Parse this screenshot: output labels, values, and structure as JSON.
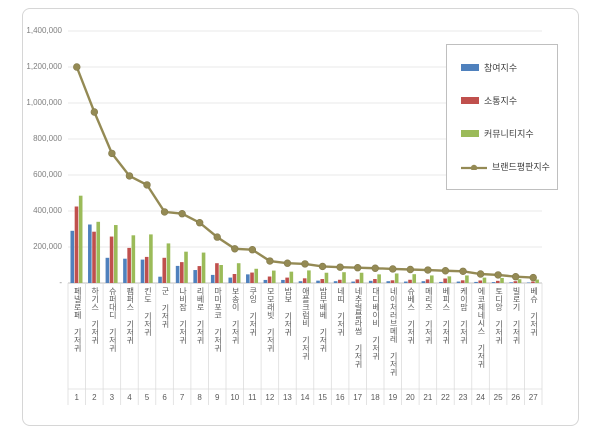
{
  "chart_data": {
    "type": "bar",
    "note_render": "grouped bars with overlaid line (combo chart)",
    "title": "",
    "xlabel": "",
    "ylabel": "",
    "ylim": [
      0,
      1400000
    ],
    "y_tick_step": 200000,
    "grid": true,
    "legend_position": "upper-right-box",
    "y_ticks": [
      "1,400,000",
      "1,200,000",
      "1,000,000",
      "800,000",
      "600,000",
      "400,000",
      "200,000",
      "-"
    ],
    "categories": [
      "페넬로페 기저귀",
      "하기스 기저귀",
      "슈퍼대디 기저귀",
      "팸퍼스 기저귀",
      "킨도 기저귀",
      "군 기저귀",
      "나비잠 기저귀",
      "리베로 기저귀",
      "마미포코 기저귀",
      "보송이 기저귀",
      "쿠잉 기저귀",
      "모모래빗 기저귀",
      "밤보 기저귀",
      "애플크럼비 기저귀",
      "밤부베베 기저귀",
      "네띠 기저귀",
      "네추럴블라썸 기저귀",
      "대디베이비 기저귀",
      "네이처러브메레 기저귀",
      "슈베스 기저귀",
      "메리즈 기저귀",
      "베피스 기저귀",
      "케이맘 기저귀",
      "에코제네시스 기저귀",
      "토디앙 기저귀",
      "빌로기 기저귀",
      "베슈 기저귀"
    ],
    "ranks": [
      "1",
      "2",
      "3",
      "4",
      "5",
      "6",
      "7",
      "8",
      "9",
      "10",
      "11",
      "12",
      "13",
      "14",
      "15",
      "16",
      "17",
      "18",
      "19",
      "20",
      "21",
      "22",
      "23",
      "24",
      "25",
      "26",
      "27"
    ],
    "series": [
      {
        "name": "참여지수",
        "kind": "bar",
        "color": "#4F81BD",
        "values": [
          290000,
          325000,
          140000,
          135000,
          130000,
          35000,
          95000,
          72000,
          45000,
          30000,
          48000,
          17000,
          17000,
          10000,
          13000,
          10000,
          8000,
          12000,
          10000,
          8000,
          10000,
          6000,
          8000,
          6000,
          5000,
          4000,
          3000
        ]
      },
      {
        "name": "소통지수",
        "kind": "bar",
        "color": "#C0504D",
        "values": [
          425000,
          285000,
          258000,
          195000,
          145000,
          140000,
          116000,
          94000,
          110000,
          50000,
          58000,
          36000,
          30000,
          26000,
          22000,
          18000,
          20000,
          22000,
          15000,
          18000,
          20000,
          25000,
          15000,
          14000,
          12000,
          10000,
          8000
        ]
      },
      {
        "name": "커뮤니티지수",
        "kind": "bar",
        "color": "#9BBB59",
        "values": [
          485000,
          340000,
          322000,
          265000,
          270000,
          220000,
          174000,
          169000,
          100000,
          110000,
          79000,
          69000,
          63000,
          70000,
          57000,
          60000,
          57000,
          48000,
          53000,
          49000,
          42000,
          37000,
          42000,
          30000,
          28000,
          21000,
          19000
        ]
      },
      {
        "name": "브랜드평판지수",
        "kind": "line",
        "color": "#948A54",
        "values": [
          1200000,
          950000,
          720000,
          595000,
          545000,
          395000,
          385000,
          335000,
          255000,
          190000,
          185000,
          122000,
          110000,
          106000,
          92000,
          88000,
          85000,
          82000,
          78000,
          75000,
          72000,
          68000,
          65000,
          50000,
          45000,
          35000,
          30000
        ]
      }
    ],
    "colors": {
      "grid": "#E8E8E8",
      "axis": "#C0C0C0",
      "separator": "#DCDCDC",
      "frame": "#D6D6D6",
      "y_label": "#808080",
      "x_label": "#595959",
      "legend_text": "#404040"
    }
  }
}
